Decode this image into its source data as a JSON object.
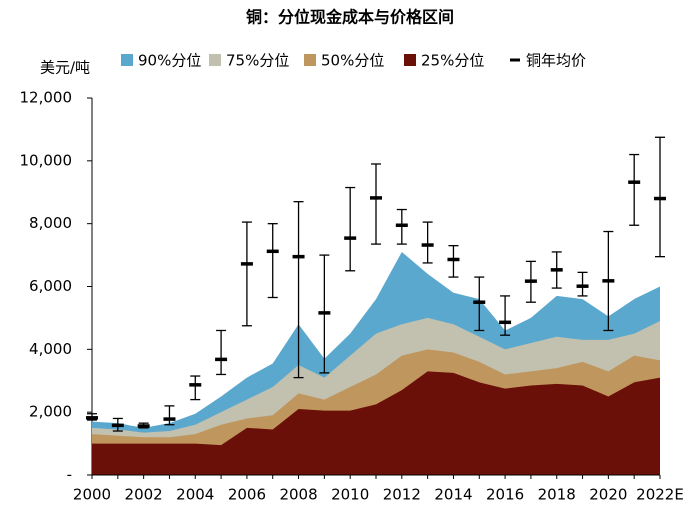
{
  "chart_data": {
    "type": "area",
    "title": "铜：分位现金成本与价格区间",
    "y_label": "美元/吨",
    "categories": [
      "2000",
      null,
      "2002",
      null,
      "2004",
      null,
      "2006",
      null,
      "2008",
      null,
      "2010",
      null,
      "2012",
      null,
      "2014",
      null,
      "2016",
      null,
      "2018",
      null,
      "2020",
      null,
      "2022E"
    ],
    "ylim": [
      0,
      12000
    ],
    "yticks": [
      {
        "value": 0,
        "label": "-"
      },
      {
        "value": 2000,
        "label": "2,000"
      },
      {
        "value": 4000,
        "label": "4,000"
      },
      {
        "value": 6000,
        "label": "6,000"
      },
      {
        "value": 8000,
        "label": "8,000"
      },
      {
        "value": 10000,
        "label": "10,000"
      },
      {
        "value": 12000,
        "label": "12,000"
      }
    ],
    "series": [
      {
        "name": "90%分位",
        "color": "#5ba8cf",
        "values": [
          1700,
          1650,
          1500,
          1650,
          1950,
          2500,
          3100,
          3550,
          4800,
          3700,
          4500,
          5600,
          7100,
          6400,
          5800,
          5600,
          4600,
          5000,
          5700,
          5600,
          5050,
          5600,
          6000
        ]
      },
      {
        "name": "75%分位",
        "color": "#c2c0ae",
        "values": [
          1500,
          1450,
          1350,
          1400,
          1600,
          2000,
          2400,
          2800,
          3500,
          3100,
          3800,
          4500,
          4800,
          5000,
          4800,
          4400,
          4000,
          4200,
          4400,
          4300,
          4300,
          4500,
          4900
        ]
      },
      {
        "name": "50%分位",
        "color": "#c0965f",
        "values": [
          1300,
          1250,
          1200,
          1200,
          1300,
          1600,
          1800,
          1900,
          2600,
          2400,
          2800,
          3200,
          3800,
          4000,
          3900,
          3600,
          3200,
          3300,
          3400,
          3600,
          3300,
          3800,
          3650
        ]
      },
      {
        "name": "25%分位",
        "color": "#6b1008",
        "values": [
          1000,
          1000,
          1000,
          1000,
          1000,
          950,
          1500,
          1450,
          2100,
          2050,
          2050,
          2250,
          2700,
          3300,
          3250,
          2950,
          2750,
          2850,
          2900,
          2850,
          2500,
          2950,
          3100
        ]
      },
      {
        "name": "铜年均价",
        "color": "#000000",
        "values": [
          1820,
          1580,
          1560,
          1780,
          2870,
          3680,
          6720,
          7120,
          6950,
          5160,
          7540,
          8820,
          7950,
          7320,
          6860,
          5500,
          4860,
          6170,
          6530,
          6010,
          6180,
          9320,
          8800
        ],
        "low": [
          1750,
          1400,
          1500,
          1600,
          2400,
          3200,
          4750,
          5650,
          3100,
          3250,
          6500,
          7350,
          7350,
          6750,
          6300,
          4600,
          4450,
          5500,
          5950,
          5700,
          4600,
          7950,
          6950
        ],
        "high": [
          1950,
          1800,
          1650,
          2200,
          3150,
          4600,
          8050,
          8000,
          8700,
          7000,
          9150,
          9900,
          8450,
          8050,
          7300,
          6300,
          5700,
          6800,
          7100,
          6450,
          7750,
          10200,
          10750
        ]
      }
    ]
  }
}
